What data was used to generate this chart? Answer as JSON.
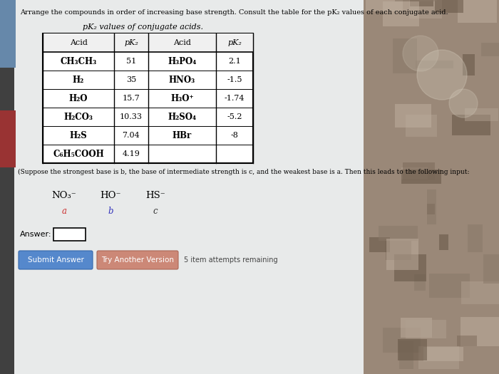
{
  "title": "Arrange the compounds in order of increasing base strength. Consult the table for the pK₂ values of each conjugate acid.",
  "table_title": "pK₂ values of conjugate acids.",
  "table_headers": [
    "Acid",
    "pK₂",
    "Acid",
    "pK₂"
  ],
  "table_rows_left": [
    [
      "CH₃CH₃",
      "51"
    ],
    [
      "H₂",
      "35"
    ],
    [
      "H₂O",
      "15.7"
    ],
    [
      "H₂CO₃",
      "10.33"
    ],
    [
      "H₂S",
      "7.04"
    ],
    [
      "C₆H₅COOH",
      "4.19"
    ]
  ],
  "table_rows_right": [
    [
      "H₃PO₄",
      "2.1"
    ],
    [
      "HNO₃",
      "-1.5"
    ],
    [
      "H₃O⁺",
      "-1.74"
    ],
    [
      "H₂SO₄",
      "-5.2"
    ],
    [
      "HBr",
      "-8"
    ],
    [
      "",
      ""
    ]
  ],
  "note_text": "(Suppose the strongest base is b, the base of intermediate strength is c, and the weakest base is a. Then this leads to the following input:",
  "compounds": [
    "NO₃⁻",
    "HO⁻",
    "HS⁻"
  ],
  "labels": [
    "a",
    "b",
    "c"
  ],
  "label_colors": [
    "#cc3333",
    "#3333bb",
    "#333333"
  ],
  "answer_label": "Answer:",
  "btn1": "Submit Answer",
  "btn2": "Try Another Version",
  "btn_note": "5 item attempts remaining",
  "bg_color": "#c8c8c8",
  "white_panel_color": "#e8e8e8",
  "btn1_color": "#5588cc",
  "btn2_color": "#cc8877",
  "right_photo_color1": "#a89880",
  "right_photo_color2": "#786858"
}
